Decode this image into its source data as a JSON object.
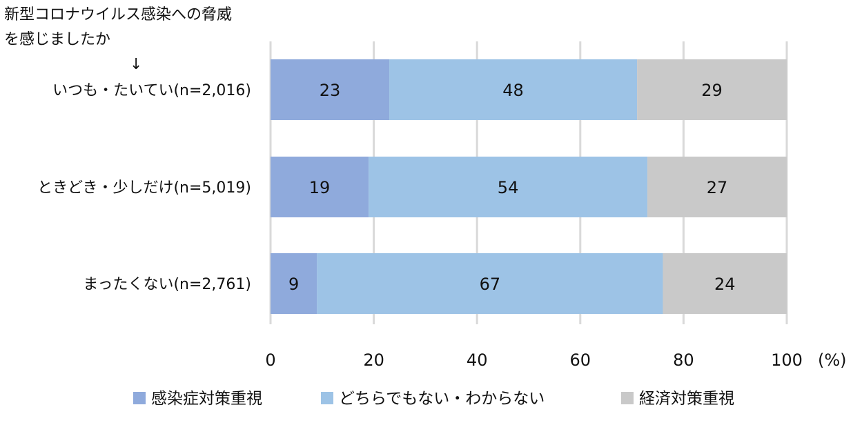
{
  "chart_data": {
    "type": "bar",
    "orientation": "horizontal-stacked",
    "title_lines": [
      "新型コロナウイルス感染への脅威",
      "を感じましたか",
      "↓"
    ],
    "categories": [
      "いつも・たいてい(n=2,016)",
      "ときどき・少しだけ(n=5,019)",
      "まったくない(n=2,761)"
    ],
    "series": [
      {
        "name": "感染症対策重視",
        "color": "#8faadc",
        "values": [
          23,
          19,
          9
        ]
      },
      {
        "name": "どちらでもない・わからない",
        "color": "#9dc3e6",
        "values": [
          48,
          54,
          67
        ]
      },
      {
        "name": "経済対策重視",
        "color": "#c9c9c9",
        "values": [
          29,
          27,
          24
        ]
      }
    ],
    "xticks": [
      0,
      20,
      40,
      60,
      80,
      100
    ],
    "xlim": [
      0,
      100
    ],
    "xlabel": "(%)",
    "grid": true,
    "legend_position": "bottom"
  }
}
